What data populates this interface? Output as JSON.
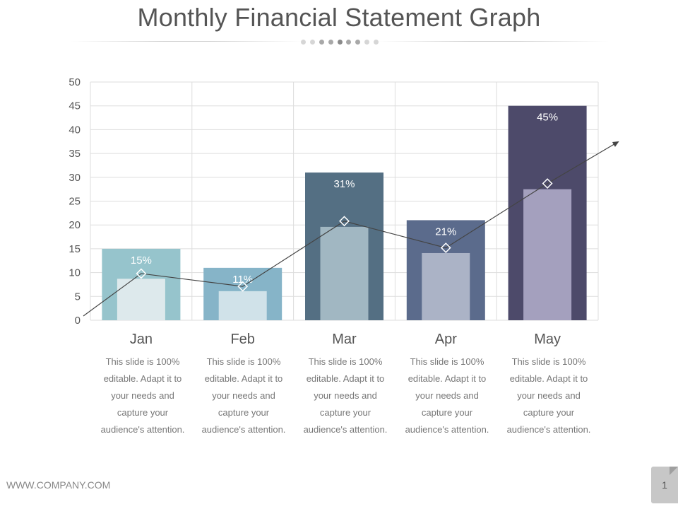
{
  "title": "Monthly Financial Statement Graph",
  "footer": {
    "url": "WWW.COMPANY.COM",
    "page_number": "1"
  },
  "colors": {
    "outer_bars": [
      "#96c4cc",
      "#86b4c8",
      "#546f83",
      "#5b6b8c",
      "#4d4a6a"
    ],
    "inner_bars": [
      "#dde9ec",
      "#d0e2e9",
      "#a1b7c2",
      "#abb3c6",
      "#a4a0be"
    ],
    "line": "#444444",
    "grid": "#dddddd",
    "axis_text": "#555555"
  },
  "chart_data": {
    "type": "bar",
    "categories": [
      "Jan",
      "Feb",
      "Mar",
      "Apr",
      "May"
    ],
    "series": [
      {
        "values": [
          15,
          11,
          31,
          21,
          45
        ]
      },
      {
        "values": [
          8.7,
          6.1,
          19.6,
          14.1,
          27.5
        ]
      },
      {
        "values": [
          9.8,
          7.1,
          20.8,
          15.2,
          28.7
        ]
      }
    ],
    "bar_labels": [
      "15%",
      "11%",
      "31%",
      "21%",
      "45%"
    ],
    "yticks": [
      "0",
      "5",
      "10",
      "15",
      "20",
      "25",
      "30",
      "35",
      "40",
      "45",
      "50"
    ],
    "ylim": [
      0,
      50
    ],
    "grid": true
  },
  "captions": [
    "This slide is 100% editable. Adapt it to your needs and capture your audience's attention.",
    "This slide is 100% editable. Adapt it to your needs and capture your audience's attention.",
    "This slide is 100% editable. Adapt it to your needs and capture your audience's attention.",
    "This slide is 100% editable. Adapt it to your needs and capture your audience's attention.",
    "This slide is 100% editable. Adapt it to your needs and capture your audience's attention."
  ]
}
